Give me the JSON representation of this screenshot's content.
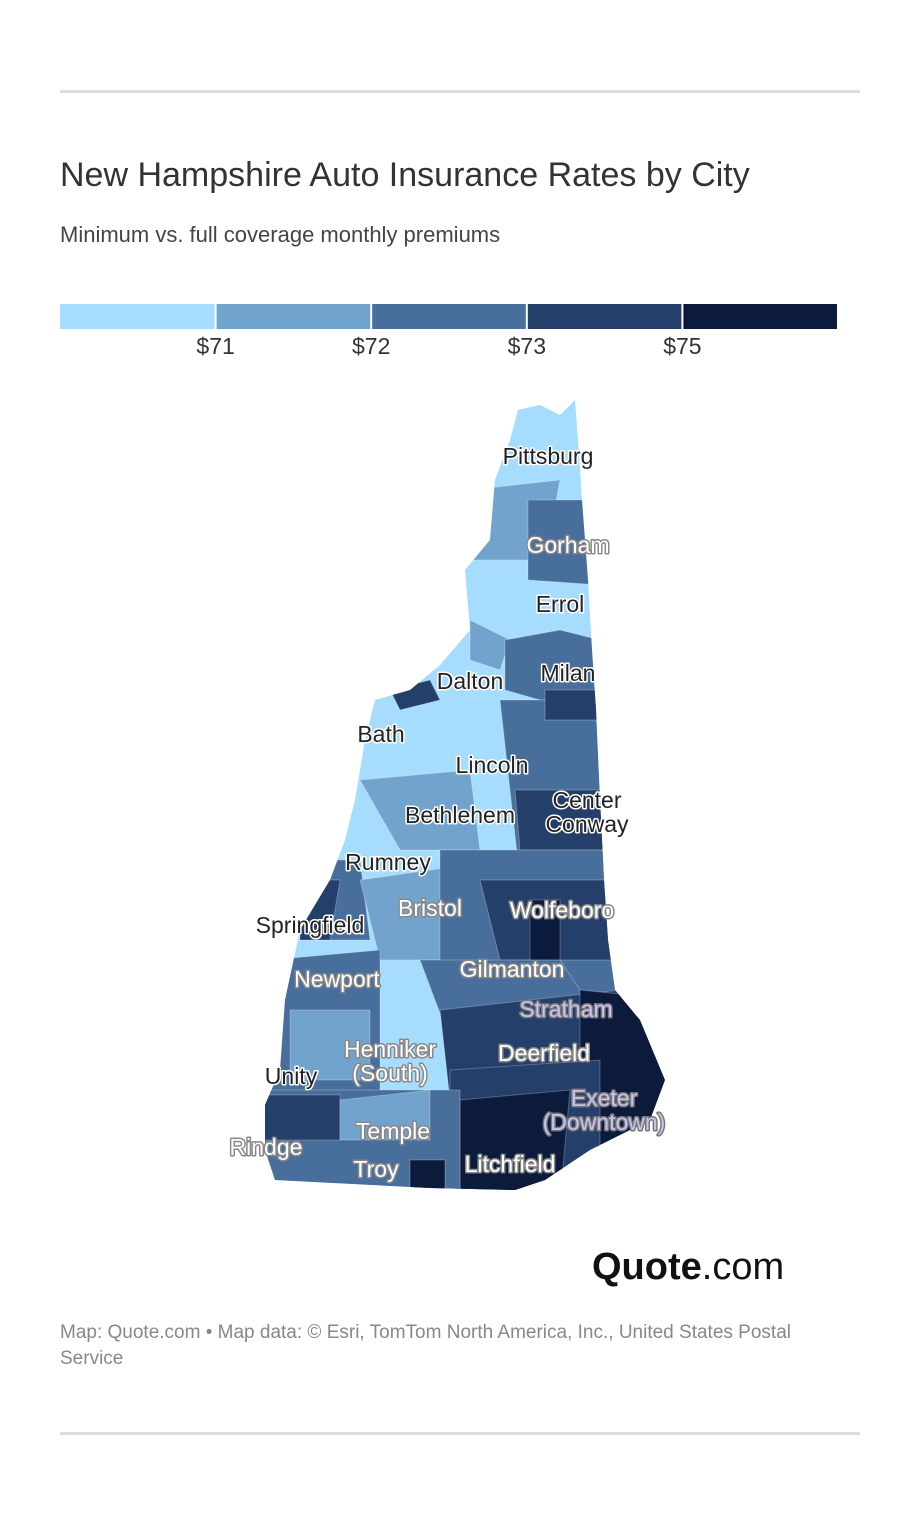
{
  "header": {
    "title": "New Hampshire Auto Insurance Rates by City",
    "subtitle": "Minimum vs. full coverage monthly premiums"
  },
  "legend": {
    "colors": [
      "#a6dcfe",
      "#72a3cc",
      "#486f9b",
      "#243f69",
      "#0c1a3c"
    ],
    "labels": [
      "$71",
      "$72",
      "$73",
      "$75"
    ]
  },
  "cities": [
    "Pittsburg",
    "Gorham",
    "Errol",
    "Milan",
    "Dalton",
    "Bath",
    "Lincoln",
    [
      "Center",
      "Conway"
    ],
    "Bethlehem",
    "Rumney",
    "Springfield",
    "Bristol",
    "Wolfeboro",
    "Gilmanton",
    "Newport",
    "Stratham",
    [
      "Henniker",
      "(South)"
    ],
    "Deerfield",
    "Unity",
    [
      "Exeter",
      "(Downtown)"
    ],
    "Temple",
    "Rindge",
    "Troy",
    "Litchfield"
  ],
  "logo": {
    "name": "Quote",
    "suffix": ".com"
  },
  "footer": "Map: Quote.com • Map data: © Esri, TomTom North America, Inc., United States Postal Service"
}
